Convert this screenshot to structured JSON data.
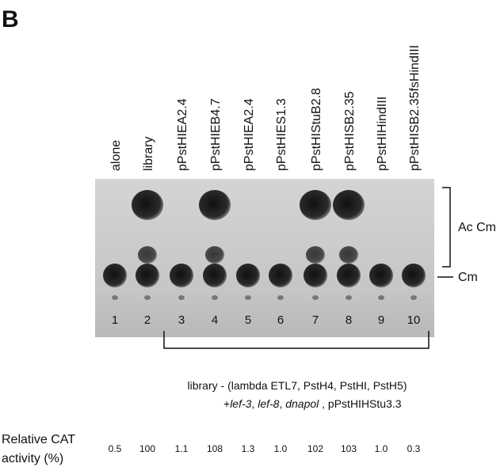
{
  "panel": "B",
  "lanes": [
    {
      "number": 1,
      "label": "alone",
      "activity": "0.5"
    },
    {
      "number": 2,
      "label": "library",
      "activity": "100"
    },
    {
      "number": 3,
      "label": "pPstHIEA2.4",
      "activity": "1.1"
    },
    {
      "number": 4,
      "label": "pPstHIEB4.7",
      "activity": "108"
    },
    {
      "number": 5,
      "label": "pPstHIEA2.4",
      "activity": "1.3"
    },
    {
      "number": 6,
      "label": "pPstHIES1.3",
      "activity": "1.0"
    },
    {
      "number": 7,
      "label": "pPstHIStuB2.8",
      "activity": "102"
    },
    {
      "number": 8,
      "label": "pPstHISB2.35",
      "activity": "103"
    },
    {
      "number": 9,
      "label": "pPstHIHindIII",
      "activity": "1.0"
    },
    {
      "number": 10,
      "label": "pPstHISB2.35fsHindIII",
      "activity": "0.3"
    }
  ],
  "spot_labels": {
    "acetylated": "Ac Cm",
    "substrate": "Cm"
  },
  "bracket": {
    "line1": "library - (lambda ETL7, PstH4, PstHI, PstH5)",
    "line2": [
      "+",
      "lef-3",
      ", ",
      "lef-8",
      ", ",
      "dnapol",
      " , pPstHIHStu3.3"
    ]
  },
  "activity_label": [
    "Relative CAT",
    "activity (%)"
  ]
}
